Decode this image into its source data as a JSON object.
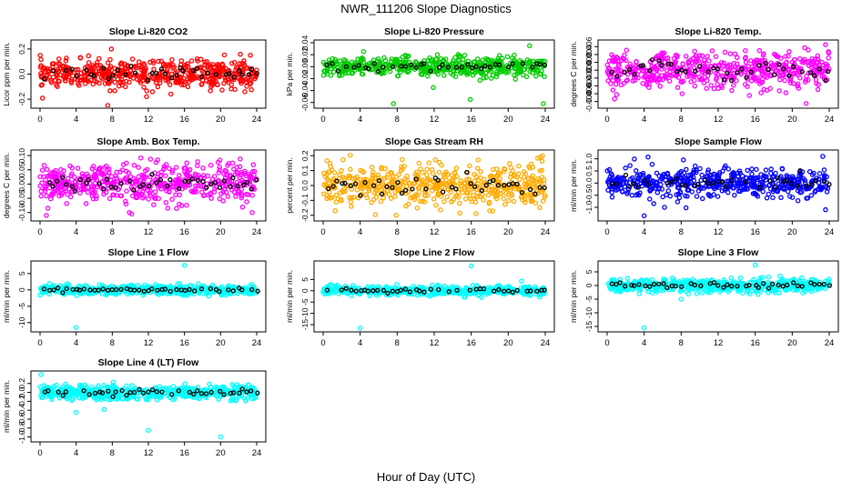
{
  "page": {
    "title": "NWR_111206  Slope Diagnostics",
    "xlabel": "Hour of Day (UTC)"
  },
  "x_ticks": [
    "0",
    "4",
    "8",
    "12",
    "16",
    "20",
    "24"
  ],
  "chart_data": [
    {
      "type": "scatter",
      "title": "Slope Li-820 CO2",
      "ylabel": "Licor ppm per min.",
      "color": "#ff0000",
      "xlim": [
        0,
        24
      ],
      "ylim": [
        -0.25,
        0.25
      ],
      "yticks": [
        -0.2,
        0.0,
        0.2
      ],
      "ytick_labels": [
        "-0.2",
        "0.0",
        "0.2"
      ],
      "scatter": 0.055,
      "outliers": [
        [
          7.5,
          -0.25
        ],
        [
          7.9,
          0.2
        ],
        [
          23.3,
          0.15
        ],
        [
          11.8,
          -0.18
        ]
      ]
    },
    {
      "type": "scatter",
      "title": "Slope Li-820 Pressure",
      "ylabel": "kPa per min.",
      "color": "#00cc00",
      "xlim": [
        0,
        24
      ],
      "ylim": [
        -0.065,
        0.04
      ],
      "yticks": [
        -0.06,
        -0.04,
        -0.02,
        0.0,
        0.02,
        0.04
      ],
      "ytick_labels": [
        "-0.06",
        "-0.04",
        "-0.02",
        "0.00",
        "0.02",
        "0.04"
      ],
      "scatter": 0.008,
      "outliers": [
        [
          7.6,
          -0.062
        ],
        [
          15.9,
          -0.055
        ],
        [
          23.8,
          -0.062
        ],
        [
          11.9,
          -0.035
        ],
        [
          22.3,
          0.035
        ]
      ]
    },
    {
      "type": "scatter",
      "title": "Slope Li-820 Temp.",
      "ylabel": "degrees C per min.",
      "color": "#ff00ff",
      "xlim": [
        0,
        24
      ],
      "ylim": [
        -0.009,
        0.007
      ],
      "yticks": [
        -0.008,
        -0.006,
        -0.004,
        -0.002,
        0.0,
        0.002,
        0.004,
        0.006
      ],
      "ytick_labels": [
        "-0.008",
        "-0.006",
        "-0.004",
        "-0.002",
        "0.000",
        "0.002",
        "0.004",
        "0.006"
      ],
      "scatter": 0.0022,
      "outliers": [
        [
          21.5,
          -0.0085
        ],
        [
          23.6,
          0.0065
        ],
        [
          8.1,
          -0.006
        ]
      ]
    },
    {
      "type": "scatter",
      "title": "Slope Amb. Box Temp.",
      "ylabel": "degrees C per min.",
      "color": "#ff00ff",
      "xlim": [
        0,
        24
      ],
      "ylim": [
        -0.12,
        0.11
      ],
      "yticks": [
        -0.1,
        -0.05,
        0.0,
        0.05,
        0.1
      ],
      "ytick_labels": [
        "-0.10",
        "-0.05",
        "0.00",
        "0.05",
        "0.10"
      ],
      "scatter": 0.035,
      "outliers": [
        [
          0.7,
          -0.11
        ],
        [
          9.9,
          -0.1
        ],
        [
          23.5,
          -0.1
        ]
      ]
    },
    {
      "type": "scatter",
      "title": "Slope Gas Stream RH",
      "ylabel": "percent per min.",
      "color": "#ffaa00",
      "xlim": [
        0,
        24
      ],
      "ylim": [
        -0.22,
        0.22
      ],
      "yticks": [
        -0.2,
        -0.1,
        0.0,
        0.1,
        0.2
      ],
      "ytick_labels": [
        "-0.2",
        "-0.1",
        "0.0",
        "0.1",
        "0.2"
      ],
      "scatter": 0.07,
      "outliers": [
        [
          23.7,
          0.2
        ],
        [
          7.9,
          -0.2
        ],
        [
          18.0,
          -0.17
        ]
      ]
    },
    {
      "type": "scatter",
      "title": "Slope Sample Flow",
      "ylabel": "ml/min per min.",
      "color": "#0000ff",
      "xlim": [
        0,
        24
      ],
      "ylim": [
        -1.45,
        1.25
      ],
      "yticks": [
        -1.0,
        -0.5,
        0.0,
        0.5,
        1.0
      ],
      "ytick_labels": [
        "-1.0",
        "-0.5",
        "0.0",
        "0.5",
        "1.0"
      ],
      "scatter": 0.3,
      "outliers": [
        [
          4.0,
          -1.35
        ],
        [
          23.6,
          -1.1
        ],
        [
          23.3,
          1.1
        ],
        [
          6.2,
          -1.0
        ]
      ]
    },
    {
      "type": "scatter",
      "title": "Slope Line 1 Flow",
      "ylabel": "ml/min per min.",
      "color": "#00ffff",
      "xlim": [
        0,
        24
      ],
      "ylim": [
        -12,
        8
      ],
      "yticks": [
        -10,
        -5,
        0,
        5
      ],
      "ytick_labels": [
        "-10",
        "-5",
        "0",
        "5"
      ],
      "scatter": 0.7,
      "outliers": [
        [
          4.0,
          -11.5
        ],
        [
          16.0,
          7.5
        ]
      ]
    },
    {
      "type": "scatter",
      "title": "Slope Line 2 Flow",
      "ylabel": "ml/min per min.",
      "color": "#00ffff",
      "xlim": [
        0,
        24
      ],
      "ylim": [
        -17,
        12
      ],
      "yticks": [
        -15,
        -10,
        -5,
        0,
        5
      ],
      "ytick_labels": [
        "-15",
        "-10",
        "-5",
        "0",
        "5"
      ],
      "scatter": 1.0,
      "outliers": [
        [
          4.0,
          -16.5
        ],
        [
          16.0,
          11.0
        ]
      ]
    },
    {
      "type": "scatter",
      "title": "Slope Line 3 Flow",
      "ylabel": "ml/min per min.",
      "color": "#00ffff",
      "xlim": [
        0,
        24
      ],
      "ylim": [
        -16,
        8
      ],
      "yticks": [
        -15,
        -10,
        -5,
        0,
        5
      ],
      "ytick_labels": [
        "-15",
        "-10",
        "-5",
        "0",
        "5"
      ],
      "scatter": 1.2,
      "outliers": [
        [
          4.0,
          -15.5
        ],
        [
          16.0,
          7.5
        ],
        [
          8.0,
          -5.0
        ]
      ]
    },
    {
      "type": "scatter",
      "title": "Slope Line 4 (LT) Flow",
      "ylabel": "ml/min per min.",
      "color": "#00ffff",
      "xlim": [
        0,
        24
      ],
      "ylim": [
        -1.05,
        0.42
      ],
      "yticks": [
        -1.0,
        -0.8,
        -0.6,
        -0.4,
        -0.2,
        0.0,
        0.2
      ],
      "ytick_labels": [
        "-1.0",
        "-0.8",
        "-0.6",
        "-0.4",
        "-0.2",
        "0.0",
        "0.2"
      ],
      "scatter": 0.08,
      "outliers": [
        [
          0.1,
          0.4
        ],
        [
          12.0,
          -0.85
        ],
        [
          20.0,
          -1.0
        ],
        [
          4.0,
          -0.45
        ]
      ]
    }
  ]
}
